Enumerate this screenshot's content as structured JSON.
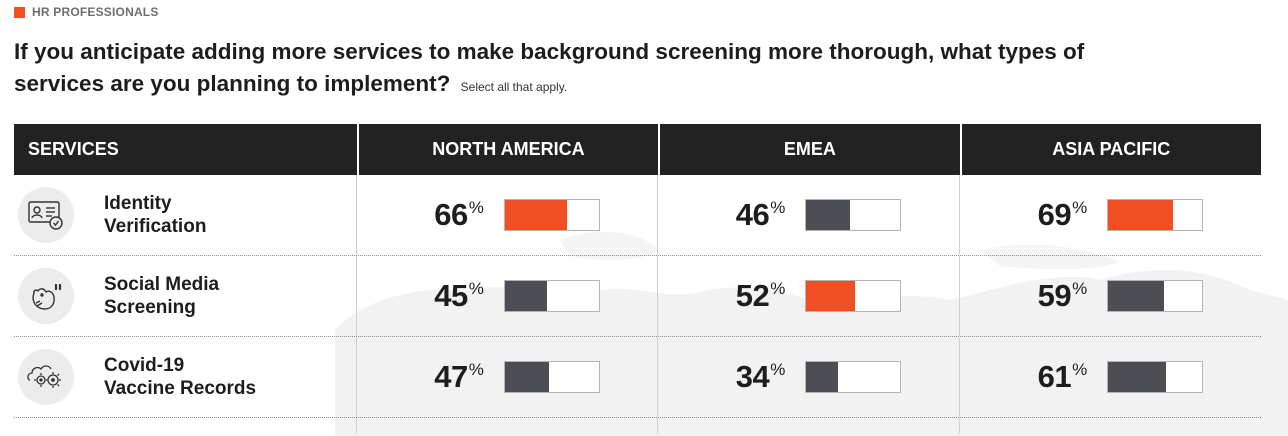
{
  "kicker": {
    "label": "HR PROFESSIONALS",
    "accent_color": "#f04e23"
  },
  "question": {
    "text": "If you anticipate adding more services to make background screening more thorough, what types of services are you planning to implement?",
    "note": "Select all that apply."
  },
  "colors": {
    "highlight": "#f04e23",
    "default": "#4d4e53",
    "header_bg": "#222222"
  },
  "chart_data": {
    "type": "table",
    "columns": [
      "SERVICES",
      "NORTH AMERICA",
      "EMEA",
      "ASIA PACIFIC"
    ],
    "rows": [
      {
        "service": "Identity Verification",
        "label_lines": [
          "Identity",
          "Verification"
        ],
        "icon": "id-card-check-icon",
        "values": [
          66,
          46,
          69
        ],
        "highlight": [
          true,
          false,
          true
        ]
      },
      {
        "service": "Social Media Screening",
        "label_lines": [
          "Social Media",
          "Screening"
        ],
        "icon": "bird-quote-icon",
        "values": [
          45,
          52,
          59
        ],
        "highlight": [
          false,
          true,
          false
        ]
      },
      {
        "service": "Covid-19 Vaccine Records",
        "label_lines": [
          "Covid-19",
          "Vaccine Records"
        ],
        "icon": "virus-icon",
        "values": [
          47,
          34,
          61
        ],
        "highlight": [
          false,
          false,
          false
        ]
      }
    ],
    "unit": "%"
  }
}
